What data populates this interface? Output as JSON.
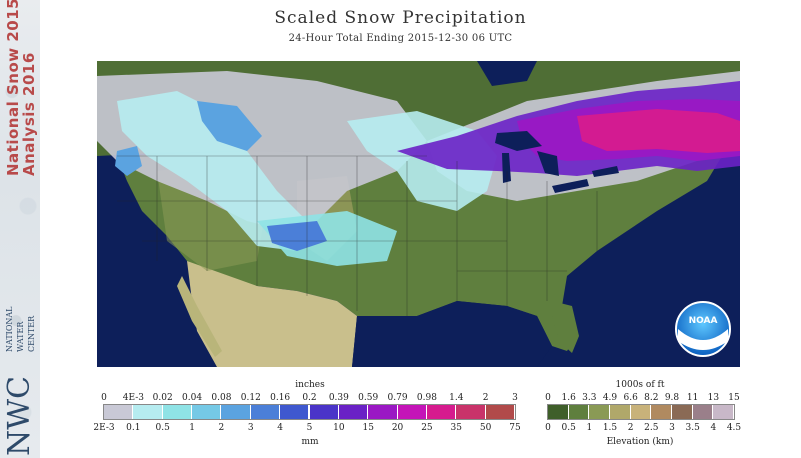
{
  "branding": {
    "product_line1": "National Snow",
    "product_line1_year": "2015",
    "product_line2": "Analysis",
    "product_line2_year": "2016",
    "org_abbr": "NWC",
    "org_name_1": "NATIONAL",
    "org_name_2": "WATER",
    "org_name_3": "CENTER"
  },
  "header": {
    "title": "Scaled Snow Precipitation",
    "subtitle": "24-Hour Total Ending 2015-12-30 06 UTC"
  },
  "map": {
    "logo_text": "NOAA",
    "colors": {
      "ocean": "#0d1f5a",
      "land": "#5f7f3e",
      "canada": "#4f6e35",
      "mexico": "#c9bf8c",
      "great_lakes": "#0d1f5a"
    }
  },
  "precip_legend": {
    "unit_top": "inches",
    "unit_bottom": "mm",
    "top_ticks": [
      "0",
      "4E-3",
      "0.02",
      "0.04",
      "0.08",
      "0.12",
      "0.16",
      "0.2",
      "0.39",
      "0.59",
      "0.79",
      "0.98",
      "1.4",
      "2",
      "3"
    ],
    "bottom_ticks": [
      "2E-3",
      "0.1",
      "0.5",
      "1",
      "2",
      "3",
      "4",
      "5",
      "10",
      "15",
      "20",
      "25",
      "35",
      "50",
      "75"
    ],
    "colors": [
      "#c9c9d6",
      "#b6ecf0",
      "#8fe3e6",
      "#75c9e6",
      "#5ba3e0",
      "#4b7fd8",
      "#3f58cf",
      "#4a34c8",
      "#6a21c6",
      "#9a18c4",
      "#c414b8",
      "#d61b8e",
      "#c9336a",
      "#b14a4a"
    ]
  },
  "elevation_legend": {
    "unit_top": "1000s of ft",
    "unit_bottom": "Elevation (km)",
    "top_ticks": [
      "0",
      "1.6",
      "3.3",
      "4.9",
      "6.6",
      "8.2",
      "9.8",
      "11",
      "13",
      "15"
    ],
    "bottom_ticks": [
      "0",
      "0.5",
      "1",
      "1.5",
      "2",
      "2.5",
      "3",
      "3.5",
      "4",
      "4.5"
    ],
    "colors": [
      "#3f5f2a",
      "#5f7f3e",
      "#8a9a55",
      "#b0a86a",
      "#c8b27a",
      "#b08a60",
      "#8a6a55",
      "#9a7f8a",
      "#c8b8c8"
    ]
  }
}
